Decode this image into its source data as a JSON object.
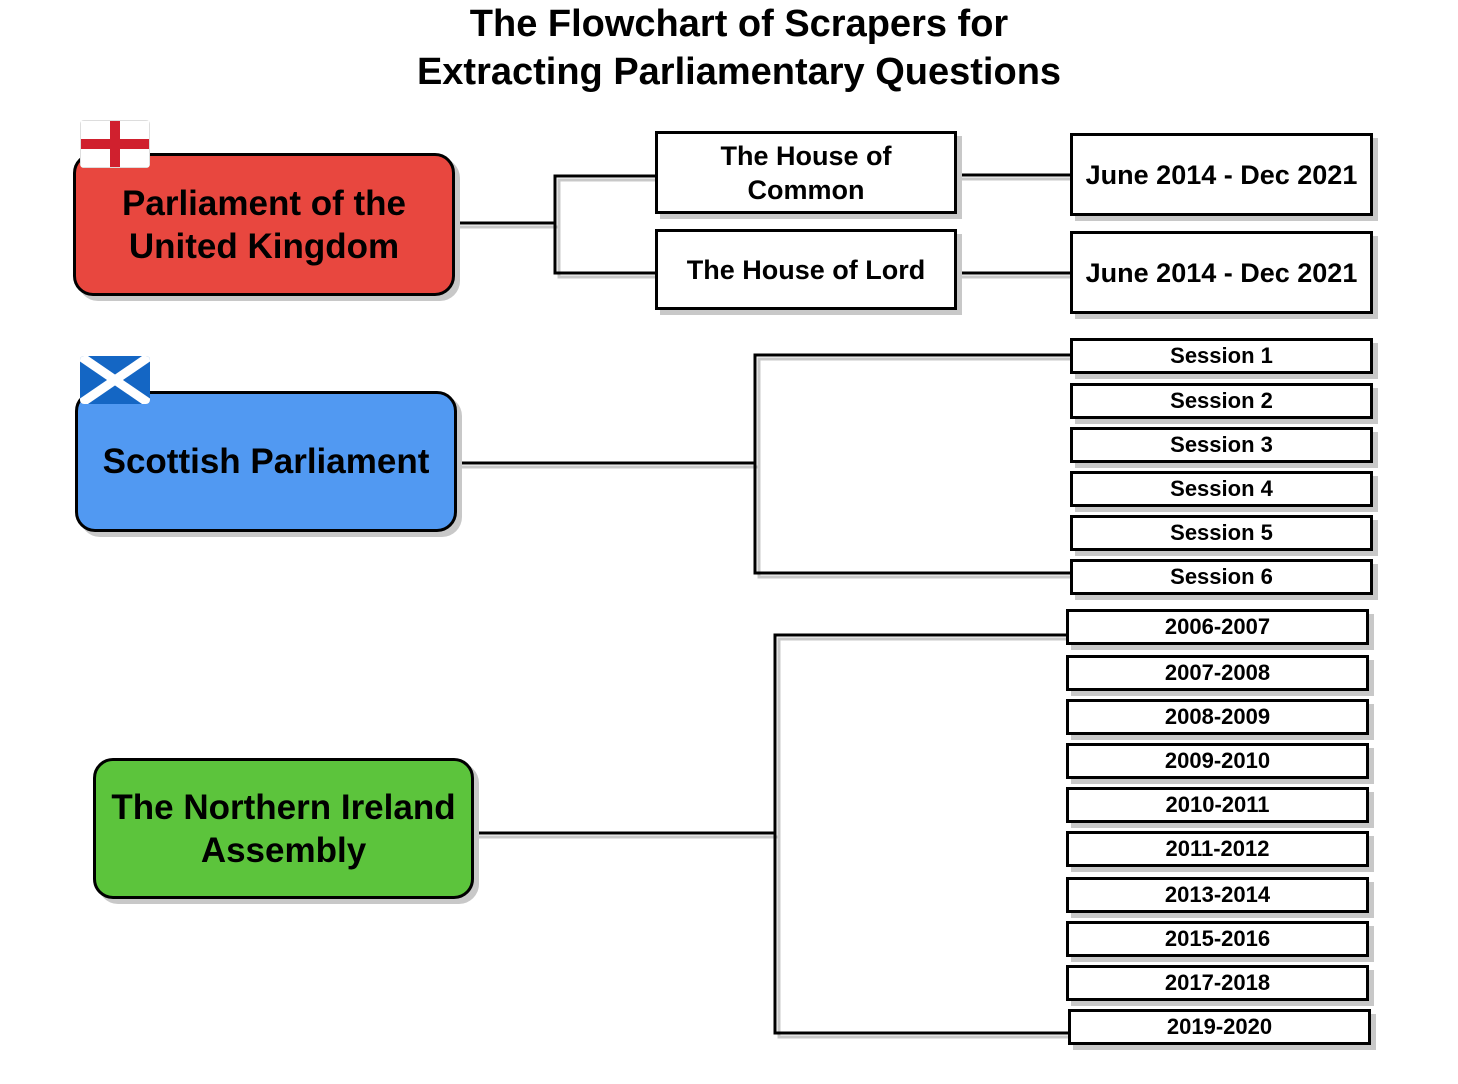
{
  "title": {
    "line1": "The Flowchart of Scrapers for",
    "line2": "Extracting Parliamentary Questions"
  },
  "colors": {
    "uk": "#e8473f",
    "scotland": "#5199f2",
    "ni": "#5cc43c"
  },
  "uk": {
    "label": "Parliament of the United Kingdom",
    "flag": "england-flag-icon",
    "houses": [
      {
        "label": "The House of Common",
        "range": "June 2014 - Dec 2021"
      },
      {
        "label": "The House of Lord",
        "range": "June 2014 - Dec 2021"
      }
    ]
  },
  "scotland": {
    "label": "Scottish Parliament",
    "flag": "scotland-flag-icon",
    "sessions": [
      "Session 1",
      "Session 2",
      "Session 3",
      "Session 4",
      "Session 5",
      "Session 6"
    ]
  },
  "ni": {
    "label": "The Northern Ireland Assembly",
    "years": [
      "2006-2007",
      "2007-2008",
      "2008-2009",
      "2009-2010",
      "2010-2011",
      "2011-2012",
      "2013-2014",
      "2015-2016",
      "2017-2018",
      "2019-2020"
    ]
  }
}
